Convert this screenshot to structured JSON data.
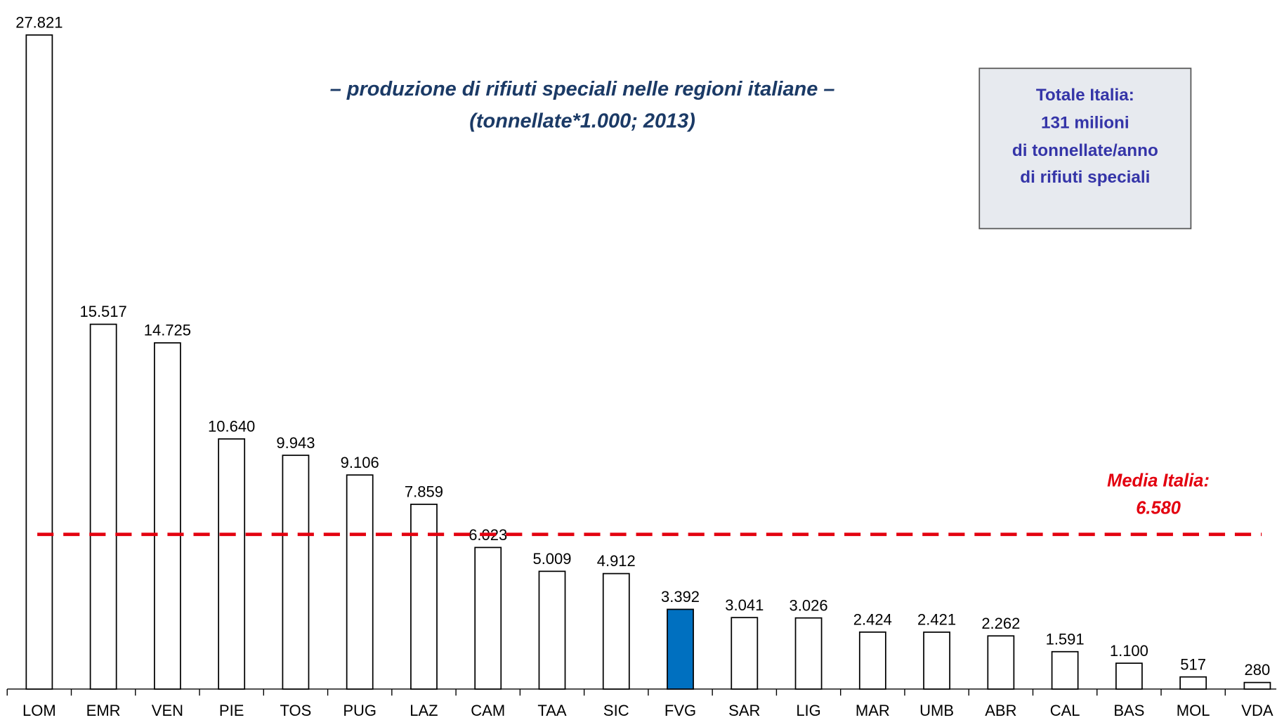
{
  "chart_data": {
    "type": "bar",
    "title": "– produzione di rifiuti speciali nelle regioni italiane –",
    "subtitle": "(tonnellate*1.000; 2013)",
    "categories": [
      "LOM",
      "EMR",
      "VEN",
      "PIE",
      "TOS",
      "PUG",
      "LAZ",
      "CAM",
      "TAA",
      "SIC",
      "FVG",
      "SAR",
      "LIG",
      "MAR",
      "UMB",
      "ABR",
      "CAL",
      "BAS",
      "MOL",
      "VDA"
    ],
    "values": [
      27821,
      15517,
      14725,
      10640,
      9943,
      9106,
      7859,
      6023,
      5009,
      4912,
      3392,
      3041,
      3026,
      2424,
      2421,
      2262,
      1591,
      1100,
      517,
      280
    ],
    "value_labels": [
      "27.821",
      "15.517",
      "14.725",
      "10.640",
      "9.943",
      "9.106",
      "7.859",
      "6.023",
      "5.009",
      "4.912",
      "3.392",
      "3.041",
      "3.026",
      "2.424",
      "2.421",
      "2.262",
      "1.591",
      "1.100",
      "517",
      "280"
    ],
    "colors": [
      "#ffffff",
      "#ffffff",
      "#ffffff",
      "#ffffff",
      "#ffffff",
      "#ffffff",
      "#ffffff",
      "#ffffff",
      "#ffffff",
      "#ffffff",
      "#0070c0",
      "#ffffff",
      "#ffffff",
      "#ffffff",
      "#ffffff",
      "#ffffff",
      "#ffffff",
      "#ffffff",
      "#ffffff",
      "#ffffff"
    ],
    "reference_line": {
      "label": "Media Italia:",
      "value": 6580,
      "value_label": "6.580",
      "color": "#e3000f"
    },
    "info_box": [
      "Totale Italia:",
      "131 milioni",
      "di tonnellate/anno",
      "di rifiuti speciali"
    ]
  }
}
